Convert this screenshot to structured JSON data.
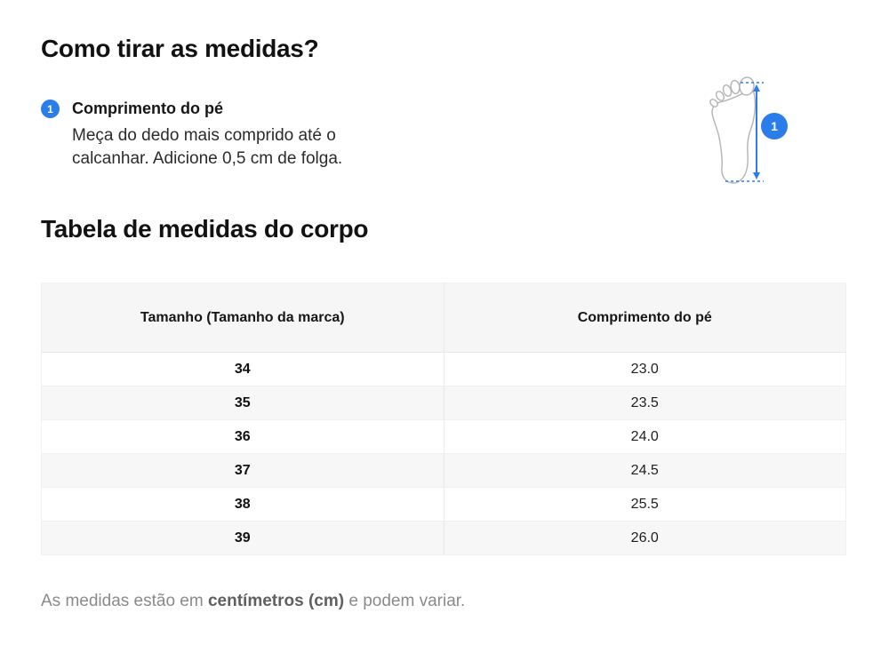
{
  "page": {
    "title": "Como tirar as medidas?",
    "section_title": "Tabela de medidas do corpo",
    "footer": {
      "prefix": "As medidas estão em ",
      "bold": "centímetros (cm)",
      "suffix": " e podem variar."
    }
  },
  "measurement": {
    "badge": "1",
    "label": "Comprimento do pé",
    "description": "Meça do dedo mais comprido até o calcanhar. Adicione 0,5 cm de folga."
  },
  "diagram": {
    "badge": "1",
    "icon": "foot-outline-with-measurement-arrow"
  },
  "table": {
    "headers": [
      "Tamanho (Tamanho da marca)",
      "Comprimento do pé"
    ],
    "rows": [
      {
        "size": "34",
        "length": "23.0"
      },
      {
        "size": "35",
        "length": "23.5"
      },
      {
        "size": "36",
        "length": "24.0"
      },
      {
        "size": "37",
        "length": "24.5"
      },
      {
        "size": "38",
        "length": "25.5"
      },
      {
        "size": "39",
        "length": "26.0"
      }
    ]
  },
  "theme": {
    "accent_blue": "#2b7de9",
    "foot_outline_gray": "#b3b3b3",
    "table_header_bg": "#f6f6f6",
    "row_alt_bg": "#f7f7f7",
    "border_color": "#ececec",
    "footer_text_gray": "#8a8a8a"
  }
}
